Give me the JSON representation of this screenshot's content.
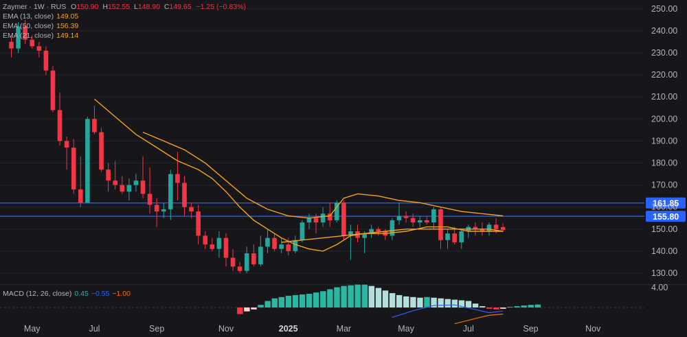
{
  "chart_data": {
    "type": "candlestick",
    "symbol": "Zaymer",
    "interval": "1W",
    "exchange": "RUS",
    "ohlc": {
      "O": "150.90",
      "H": "152.55",
      "L": "148.90",
      "C": "149.65",
      "change": "−1.25 (−0.83%)"
    },
    "indicators": [
      {
        "label": "EMA (13, close)",
        "value": "149.05",
        "color": "#f7a21b"
      },
      {
        "label": "EMA (50, close)",
        "value": "156.39",
        "color": "#f7a21b"
      },
      {
        "label": "EMA (21, close)",
        "value": "149.14",
        "color": "#f7a21b"
      }
    ],
    "macd": {
      "label": "MACD (12, 26, close)",
      "hist": "0.45",
      "macd": "−0.55",
      "signal": "−1.00",
      "hist_color": "#2ab8a4",
      "macd_color": "#2962ff",
      "signal_color": "#ff6d00"
    },
    "price_axis": [
      "250.00",
      "240.00",
      "230.00",
      "220.00",
      "210.00",
      "200.00",
      "190.00",
      "180.00",
      "170.00",
      "160.00",
      "150.00",
      "140.00",
      "130.00"
    ],
    "macd_axis": "4.00",
    "ylim": [
      125,
      254
    ],
    "x_labels": [
      {
        "text": "May",
        "week": 3,
        "bold": false
      },
      {
        "text": "Jul",
        "week": 12,
        "bold": false
      },
      {
        "text": "Sep",
        "week": 21,
        "bold": false
      },
      {
        "text": "Nov",
        "week": 31,
        "bold": false
      },
      {
        "text": "2025",
        "week": 40,
        "bold": true
      },
      {
        "text": "Mar",
        "week": 48,
        "bold": false
      },
      {
        "text": "May",
        "week": 57,
        "bold": false
      },
      {
        "text": "Jul",
        "week": 66,
        "bold": false
      },
      {
        "text": "Sep",
        "week": 75,
        "bold": false
      },
      {
        "text": "Nov",
        "week": 84,
        "bold": false
      }
    ],
    "levels": [
      {
        "value": 161.85,
        "label": "161.85",
        "color": "#2962ff"
      },
      {
        "value": 155.8,
        "label": "155.80",
        "color": "#2962ff"
      }
    ],
    "candles": [
      [
        235,
        238,
        228,
        232
      ],
      [
        232,
        244,
        230,
        242
      ],
      [
        242,
        245,
        234,
        236
      ],
      [
        236,
        238,
        232,
        233
      ],
      [
        233,
        235,
        228,
        231
      ],
      [
        231,
        233,
        220,
        222
      ],
      [
        222,
        224,
        203,
        204
      ],
      [
        204,
        212,
        188,
        190
      ],
      [
        190,
        192,
        177,
        187
      ],
      [
        187,
        191,
        166,
        168
      ],
      [
        168,
        183,
        160,
        162
      ],
      [
        162,
        201,
        162,
        200
      ],
      [
        200,
        206,
        193,
        194
      ],
      [
        194,
        196,
        176,
        177
      ],
      [
        177,
        180,
        167,
        172
      ],
      [
        172,
        181,
        168,
        170
      ],
      [
        170,
        174,
        166,
        167
      ],
      [
        167,
        173,
        163,
        170
      ],
      [
        170,
        175,
        167,
        172
      ],
      [
        172,
        183,
        164,
        166
      ],
      [
        166,
        178,
        157,
        161
      ],
      [
        161,
        164,
        151,
        158
      ],
      [
        158,
        162,
        155,
        159
      ],
      [
        159,
        177,
        154,
        175
      ],
      [
        175,
        185,
        163,
        171
      ],
      [
        171,
        174,
        156,
        160
      ],
      [
        160,
        162,
        155,
        158
      ],
      [
        158,
        161,
        143,
        147
      ],
      [
        147,
        149,
        141,
        143
      ],
      [
        143,
        146,
        140,
        141
      ],
      [
        141,
        149,
        137,
        146
      ],
      [
        146,
        148,
        133,
        137
      ],
      [
        137,
        141,
        131,
        133
      ],
      [
        133,
        135,
        130,
        131
      ],
      [
        131,
        142,
        130,
        139
      ],
      [
        139,
        143,
        133,
        134
      ],
      [
        134,
        147,
        133,
        142
      ],
      [
        142,
        150,
        139,
        146
      ],
      [
        146,
        148,
        140,
        141
      ],
      [
        141,
        146,
        139,
        143
      ],
      [
        143,
        146,
        138,
        140
      ],
      [
        140,
        147,
        139,
        145
      ],
      [
        145,
        154,
        144,
        153
      ],
      [
        153,
        157,
        150,
        155
      ],
      [
        155,
        157,
        148,
        153
      ],
      [
        153,
        160,
        151,
        157
      ],
      [
        157,
        162,
        151,
        154
      ],
      [
        154,
        163,
        153,
        162
      ],
      [
        162,
        163,
        145,
        147
      ],
      [
        147,
        152,
        136,
        149
      ],
      [
        149,
        152,
        144,
        146
      ],
      [
        146,
        149,
        139,
        148
      ],
      [
        148,
        152,
        146,
        150
      ],
      [
        150,
        151,
        147,
        149
      ],
      [
        149,
        150,
        145,
        147
      ],
      [
        147,
        155,
        145,
        154
      ],
      [
        154,
        162,
        152,
        156
      ],
      [
        156,
        158,
        153,
        155
      ],
      [
        155,
        157,
        151,
        153
      ],
      [
        153,
        156,
        151,
        154
      ],
      [
        154,
        156,
        152,
        153
      ],
      [
        153,
        160,
        150,
        159
      ],
      [
        159,
        160,
        141,
        145
      ],
      [
        145,
        150,
        141,
        148
      ],
      [
        148,
        151,
        143,
        144
      ],
      [
        144,
        150,
        141,
        149
      ],
      [
        149,
        152,
        146,
        151
      ],
      [
        151,
        153,
        147,
        150
      ],
      [
        150,
        153,
        147,
        149
      ],
      [
        149,
        153,
        147,
        152
      ],
      [
        152,
        155,
        148,
        150
      ],
      [
        150.9,
        152.55,
        148.9,
        149.65
      ]
    ],
    "ema13": [
      [
        12,
        209
      ],
      [
        15,
        201
      ],
      [
        18,
        193
      ],
      [
        21,
        187
      ],
      [
        24,
        181
      ],
      [
        27,
        177
      ],
      [
        29,
        173
      ],
      [
        31,
        167
      ],
      [
        33,
        160
      ],
      [
        35,
        154
      ],
      [
        37,
        150
      ],
      [
        39,
        146
      ],
      [
        41,
        143
      ],
      [
        43,
        141
      ],
      [
        45,
        140
      ],
      [
        47,
        143
      ],
      [
        49,
        147
      ],
      [
        51,
        148
      ],
      [
        54,
        148
      ],
      [
        57,
        149
      ],
      [
        60,
        151
      ],
      [
        63,
        151
      ],
      [
        66,
        149
      ],
      [
        69,
        149
      ],
      [
        71,
        149
      ]
    ],
    "ema21": [
      [
        39,
        144
      ],
      [
        42,
        145
      ],
      [
        45,
        146
      ],
      [
        48,
        147
      ],
      [
        51,
        148
      ],
      [
        54,
        149
      ],
      [
        57,
        150
      ],
      [
        60,
        150
      ],
      [
        63,
        150
      ],
      [
        66,
        150
      ],
      [
        69,
        150
      ],
      [
        71,
        149
      ]
    ],
    "ema50": [
      [
        19,
        194
      ],
      [
        22,
        190
      ],
      [
        25,
        186
      ],
      [
        28,
        180
      ],
      [
        31,
        172
      ],
      [
        34,
        164
      ],
      [
        37,
        159
      ],
      [
        40,
        156
      ],
      [
        43,
        155
      ],
      [
        46,
        156
      ],
      [
        48,
        164
      ],
      [
        50,
        166
      ],
      [
        53,
        165
      ],
      [
        56,
        163
      ],
      [
        59,
        162
      ],
      [
        62,
        160
      ],
      [
        65,
        158
      ],
      [
        68,
        157
      ],
      [
        71,
        156
      ]
    ],
    "macd_hist": [
      -1.0,
      -0.6,
      -0.3,
      0.4,
      1.0,
      1.4,
      1.6,
      1.8,
      1.9,
      2.0,
      2.1,
      2.3,
      2.5,
      2.8,
      3.1,
      3.3,
      3.4,
      3.5,
      3.5,
      3.3,
      3.0,
      2.6,
      2.2,
      1.9,
      1.7,
      1.6,
      1.5,
      1.6,
      1.5,
      1.4,
      1.3,
      1.2,
      1.1,
      1.0,
      0.6,
      0.2,
      -0.2,
      -0.3,
      -0.2,
      0.1,
      0.2,
      0.3,
      0.4,
      0.45
    ],
    "macd_hist_start": 33,
    "macd_line": [
      [
        55,
        -1.5
      ],
      [
        58,
        -0.5
      ],
      [
        61,
        0.3
      ],
      [
        64,
        0.4
      ],
      [
        67,
        -0.3
      ],
      [
        69,
        -0.8
      ],
      [
        71,
        -0.55
      ]
    ],
    "signal_line": [
      [
        64,
        -2.5
      ],
      [
        67,
        -1.7
      ],
      [
        69,
        -1.2
      ],
      [
        71,
        -1.0
      ]
    ]
  },
  "colors": {
    "up": "#26a69a",
    "down": "#f23645",
    "bg": "#17171b",
    "grid": "#26262b",
    "axis_text": "#b2b5be"
  }
}
